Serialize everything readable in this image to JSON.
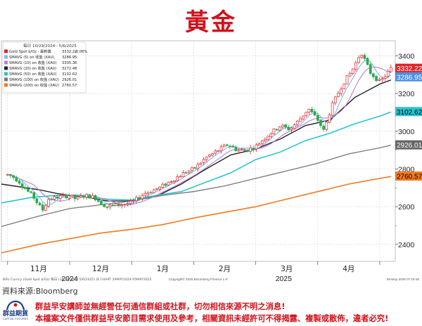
{
  "title": "黃金",
  "chart_data": {
    "type": "candlestick",
    "legend_header": "每日 10/29/2024 - 5/6/2025",
    "legend": [
      {
        "label": "Gold Spot $/Oz - 最新價",
        "value": "3332.22",
        "change": "-0.06%",
        "color": "#e0242b"
      },
      {
        "label": "SMAVG (5) on 收盤 (XAU)",
        "value": "3286.95",
        "color": "#7ab8f0"
      },
      {
        "label": "SMAVG (10) on 收盤 (XAU)",
        "value": "3305.36",
        "color": "#b77fd6"
      },
      {
        "label": "SMAVG (20) on 收盤 (XAU)",
        "value": "3272.48",
        "color": "#222222"
      },
      {
        "label": "SMAVG (50) on 收盤 (XAU)",
        "value": "3102.62",
        "color": "#28c4cf"
      },
      {
        "label": "SMAVG (100) on 收盤 (XAU)",
        "value": "2926.01",
        "color": "#777777"
      },
      {
        "label": "SMAVG (200) on 收盤 (XAU)",
        "value": "2760.57",
        "color": "#f07a21"
      }
    ],
    "y_ticks": [
      2400,
      2600,
      2800,
      3000,
      3200,
      3400
    ],
    "y_minor_ticks": [
      2500,
      2700,
      2900,
      3100,
      3300
    ],
    "ylim": [
      2310,
      3480
    ],
    "x_labels": [
      {
        "label": "11月",
        "x": 0.5
      },
      {
        "label": "12月",
        "x": 1.5
      },
      {
        "label": "1月",
        "x": 2.5
      },
      {
        "label": "2月",
        "x": 3.5
      },
      {
        "label": "3月",
        "x": 4.5
      },
      {
        "label": "4月",
        "x": 5.5
      }
    ],
    "year_labels": [
      {
        "label": "2024",
        "x": 1
      },
      {
        "label": "2025",
        "x": 4.45
      }
    ],
    "month_boundaries": [
      0,
      1,
      2,
      3,
      4,
      5,
      6
    ],
    "xlim": [
      -0.1,
      6.25
    ],
    "anchors": [
      [
        0,
        2770
      ],
      [
        0.08,
        2760
      ],
      [
        0.18,
        2735
      ],
      [
        0.3,
        2690
      ],
      [
        0.42,
        2650
      ],
      [
        0.5,
        2610
      ],
      [
        0.56,
        2580
      ],
      [
        0.66,
        2640
      ],
      [
        0.8,
        2650
      ],
      [
        1.0,
        2660
      ],
      [
        1.1,
        2640
      ],
      [
        1.25,
        2660
      ],
      [
        1.4,
        2650
      ],
      [
        1.5,
        2620
      ],
      [
        1.6,
        2600
      ],
      [
        1.8,
        2610
      ],
      [
        2.0,
        2620
      ],
      [
        2.2,
        2670
      ],
      [
        2.45,
        2700
      ],
      [
        2.65,
        2740
      ],
      [
        2.85,
        2780
      ],
      [
        3.0,
        2800
      ],
      [
        3.2,
        2860
      ],
      [
        3.4,
        2900
      ],
      [
        3.55,
        2930
      ],
      [
        3.7,
        2900
      ],
      [
        3.85,
        2900
      ],
      [
        4.0,
        2920
      ],
      [
        4.2,
        2980
      ],
      [
        4.4,
        3030
      ],
      [
        4.55,
        3010
      ],
      [
        4.7,
        3060
      ],
      [
        4.85,
        3120
      ],
      [
        5.0,
        3060
      ],
      [
        5.1,
        3000
      ],
      [
        5.22,
        3130
      ],
      [
        5.4,
        3250
      ],
      [
        5.55,
        3320
      ],
      [
        5.7,
        3420
      ],
      [
        5.85,
        3310
      ],
      [
        6.0,
        3260
      ],
      [
        6.1,
        3300
      ],
      [
        6.18,
        3332
      ]
    ],
    "sma_lines": [
      {
        "name": "SMAVG (20)",
        "color": "#222222",
        "width": 1.4,
        "points": [
          [
            -0.1,
            2720
          ],
          [
            0.2,
            2705
          ],
          [
            0.5,
            2690
          ],
          [
            0.8,
            2670
          ],
          [
            1.0,
            2660
          ],
          [
            1.3,
            2650
          ],
          [
            1.6,
            2630
          ],
          [
            2.0,
            2630
          ],
          [
            2.4,
            2655
          ],
          [
            2.8,
            2720
          ],
          [
            3.2,
            2800
          ],
          [
            3.6,
            2875
          ],
          [
            4.0,
            2905
          ],
          [
            4.4,
            2960
          ],
          [
            4.8,
            3030
          ],
          [
            5.2,
            3060
          ],
          [
            5.6,
            3180
          ],
          [
            6.0,
            3250
          ],
          [
            6.18,
            3272
          ]
        ]
      },
      {
        "name": "SMAVG (50)",
        "color": "#28c4cf",
        "width": 1.6,
        "points": [
          [
            -0.1,
            2620
          ],
          [
            0.4,
            2650
          ],
          [
            0.8,
            2660
          ],
          [
            1.2,
            2660
          ],
          [
            1.6,
            2640
          ],
          [
            2.0,
            2635
          ],
          [
            2.4,
            2660
          ],
          [
            2.8,
            2680
          ],
          [
            3.2,
            2730
          ],
          [
            3.6,
            2780
          ],
          [
            4.0,
            2850
          ],
          [
            4.4,
            2890
          ],
          [
            4.8,
            2950
          ],
          [
            5.2,
            2990
          ],
          [
            5.6,
            3040
          ],
          [
            6.0,
            3080
          ],
          [
            6.18,
            3102
          ]
        ]
      },
      {
        "name": "SMAVG (100)",
        "color": "#777777",
        "width": 1.3,
        "points": [
          [
            -0.1,
            2495
          ],
          [
            0.5,
            2550
          ],
          [
            1.0,
            2590
          ],
          [
            1.5,
            2610
          ],
          [
            2.0,
            2630
          ],
          [
            2.5,
            2660
          ],
          [
            3.0,
            2680
          ],
          [
            3.5,
            2710
          ],
          [
            4.0,
            2750
          ],
          [
            4.5,
            2790
          ],
          [
            5.0,
            2830
          ],
          [
            5.5,
            2880
          ],
          [
            6.0,
            2912
          ],
          [
            6.18,
            2926
          ]
        ]
      },
      {
        "name": "SMAVG (200)",
        "color": "#f07a21",
        "width": 1.6,
        "points": [
          [
            -0.1,
            2355
          ],
          [
            0.5,
            2400
          ],
          [
            1.0,
            2430
          ],
          [
            1.5,
            2460
          ],
          [
            2.0,
            2480
          ],
          [
            2.5,
            2505
          ],
          [
            3.0,
            2540
          ],
          [
            3.5,
            2570
          ],
          [
            4.0,
            2600
          ],
          [
            4.5,
            2640
          ],
          [
            5.0,
            2680
          ],
          [
            5.5,
            2720
          ],
          [
            6.0,
            2750
          ],
          [
            6.18,
            2760
          ]
        ]
      }
    ],
    "value_tags": [
      {
        "value": "3332.22",
        "y": 3332.22,
        "bg": "#e0242b",
        "fg": "#ffffff"
      },
      {
        "value": "3286.95",
        "y": 3286.95,
        "bg": "#4a90e2",
        "fg": "#ffffff"
      },
      {
        "value": "3102.62",
        "y": 3102.62,
        "bg": "#28c4cf",
        "fg": "#000000"
      },
      {
        "value": "2926.01",
        "y": 2926.01,
        "bg": "#666666",
        "fg": "#ffffff"
      },
      {
        "value": "2760.57",
        "y": 2760.57,
        "bg": "#f07a21",
        "fg": "#000000"
      }
    ],
    "bottom_left": "BAU Curncy (Gold Spot   $/Oz)    每日  (10/29/2024-5/6/2025) 日 CHART  29MAY2024-05MAY2025",
    "bottom_center": "Copyright© 2025 Bloomberg Finance L.P.",
    "bottom_right": "06-May-2025 07:19:49"
  },
  "source_text": "資料來源:Bloomberg",
  "logo": {
    "name": "群益期貨",
    "sub": "CAPITAL FUTURES"
  },
  "disclaimer": [
    "群益早安講師並無經營任何通信群組或社群，切勿相信來源不明之消息!",
    "本檔案文件僅供群益早安節目需求使用及參考，相關資訊未經許可不得揭露、複製或散佈，違者必究!"
  ],
  "colors": {
    "title_red": "#d0121b",
    "candle_up": "#e0242b",
    "candle_down": "#2fa84f",
    "plot_bg": "#ffffff",
    "grid": "#cfcfcf",
    "logo_blue": "#1d3f8a"
  }
}
